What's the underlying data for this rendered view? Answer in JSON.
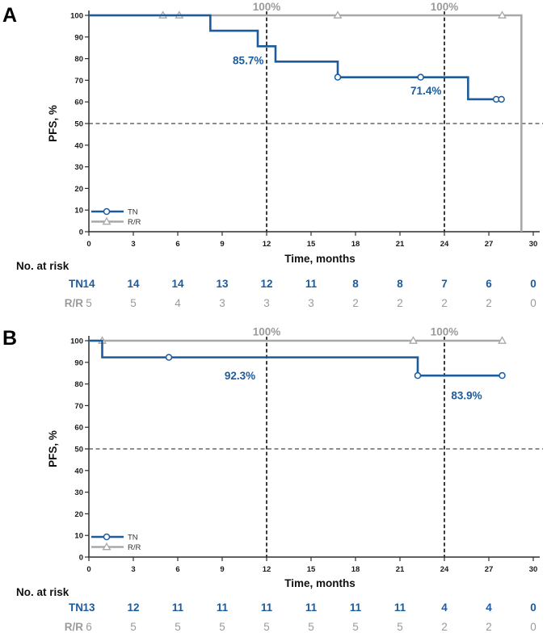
{
  "colors": {
    "blue": "#1c5b9c",
    "gray": "#a8a8a8",
    "gray_text": "#9a9a9a",
    "axis": "#2e2e2e",
    "dash": "#1a1a1a",
    "text": "#111111"
  },
  "chart_data": [
    {
      "panel_label": "A",
      "panel": "A",
      "type": "line",
      "subtype": "kaplan-meier-step",
      "xlabel": "Time, months",
      "ylabel": "PFS, %",
      "xlim": [
        0,
        30
      ],
      "ylim": [
        0,
        100
      ],
      "xticks": [
        0,
        3,
        6,
        9,
        12,
        15,
        18,
        21,
        24,
        27,
        30
      ],
      "yticks": [
        0,
        10,
        20,
        30,
        40,
        50,
        60,
        70,
        80,
        90,
        100
      ],
      "reference_lines": {
        "horizontal": [
          50
        ],
        "vertical": [
          12,
          24
        ]
      },
      "series": [
        {
          "name": "TN",
          "color": "blue",
          "marker": "circle",
          "steps": [
            [
              0,
              100
            ],
            [
              8.2,
              100
            ],
            [
              8.2,
              92.9
            ],
            [
              11.4,
              92.9
            ],
            [
              11.4,
              85.7
            ],
            [
              12.6,
              85.7
            ],
            [
              12.6,
              78.6
            ],
            [
              16.8,
              78.6
            ],
            [
              16.8,
              71.4
            ],
            [
              25.6,
              71.4
            ],
            [
              25.6,
              61.2
            ],
            [
              27.9,
              61.2
            ]
          ],
          "censor_marks": [
            [
              16.8,
              71.4
            ],
            [
              22.4,
              71.4
            ],
            [
              27.5,
              61.2
            ],
            [
              27.85,
              61.2
            ]
          ]
        },
        {
          "name": "R/R",
          "color": "gray",
          "marker": "triangle",
          "steps": [
            [
              0,
              100
            ],
            [
              29.2,
              100
            ],
            [
              29.2,
              0
            ]
          ],
          "censor_marks": [
            [
              5.0,
              100
            ],
            [
              6.1,
              100
            ],
            [
              16.8,
              100
            ],
            [
              27.9,
              100
            ]
          ]
        }
      ],
      "annotations": [
        {
          "text": "100%",
          "x": 12,
          "y": 102.3,
          "color": "gray_text",
          "anchor": "middle"
        },
        {
          "text": "100%",
          "x": 24,
          "y": 102.3,
          "color": "gray_text",
          "anchor": "middle"
        },
        {
          "text": "85.7%",
          "x": 11.8,
          "y": 77.5,
          "color": "blue",
          "anchor": "end"
        },
        {
          "text": "71.4%",
          "x": 23.8,
          "y": 63.5,
          "color": "blue",
          "anchor": "end"
        }
      ],
      "risk_table": {
        "title": "No. at risk",
        "months": [
          0,
          3,
          6,
          9,
          12,
          15,
          18,
          21,
          24,
          27,
          30
        ],
        "rows": [
          {
            "label": "TN",
            "color": "blue",
            "values": [
              14,
              14,
              14,
              13,
              12,
              11,
              8,
              8,
              7,
              6,
              0
            ]
          },
          {
            "label": "R/R",
            "color": "gray_text",
            "values": [
              5,
              5,
              4,
              3,
              3,
              3,
              2,
              2,
              2,
              2,
              0
            ]
          }
        ]
      }
    },
    {
      "panel_label": "B",
      "panel": "B",
      "type": "line",
      "subtype": "kaplan-meier-step",
      "xlabel": "Time, months",
      "ylabel": "PFS, %",
      "xlim": [
        0,
        30
      ],
      "ylim": [
        0,
        100
      ],
      "xticks": [
        0,
        3,
        6,
        9,
        12,
        15,
        18,
        21,
        24,
        27,
        30
      ],
      "yticks": [
        0,
        10,
        20,
        30,
        40,
        50,
        60,
        70,
        80,
        90,
        100
      ],
      "reference_lines": {
        "horizontal": [
          50
        ],
        "vertical": [
          12,
          24
        ]
      },
      "series": [
        {
          "name": "TN",
          "color": "blue",
          "marker": "circle",
          "steps": [
            [
              0,
              100
            ],
            [
              0.9,
              100
            ],
            [
              0.9,
              92.3
            ],
            [
              22.2,
              92.3
            ],
            [
              22.2,
              83.9
            ],
            [
              27.9,
              83.9
            ]
          ],
          "censor_marks": [
            [
              5.4,
              92.3
            ],
            [
              22.2,
              83.9
            ],
            [
              27.9,
              83.9
            ]
          ]
        },
        {
          "name": "R/R",
          "color": "gray",
          "marker": "triangle",
          "steps": [
            [
              0,
              100
            ],
            [
              27.9,
              100
            ]
          ],
          "censor_marks": [
            [
              0.9,
              100
            ],
            [
              21.9,
              100
            ],
            [
              27.9,
              100
            ]
          ]
        }
      ],
      "annotations": [
        {
          "text": "100%",
          "x": 12,
          "y": 102.5,
          "color": "gray_text",
          "anchor": "middle"
        },
        {
          "text": "100%",
          "x": 24,
          "y": 102.5,
          "color": "gray_text",
          "anchor": "middle"
        },
        {
          "text": "92.3%",
          "x": 10.2,
          "y": 82,
          "color": "blue",
          "anchor": "middle"
        },
        {
          "text": "83.9%",
          "x": 25.5,
          "y": 73,
          "color": "blue",
          "anchor": "middle"
        }
      ],
      "risk_table": {
        "title": "No. at risk",
        "months": [
          0,
          3,
          6,
          9,
          12,
          15,
          18,
          21,
          24,
          27,
          30
        ],
        "rows": [
          {
            "label": "TN",
            "color": "blue",
            "values": [
              13,
              12,
              11,
              11,
              11,
              11,
              11,
              11,
              4,
              4,
              0
            ]
          },
          {
            "label": "R/R",
            "color": "gray_text",
            "values": [
              6,
              5,
              5,
              5,
              5,
              5,
              5,
              5,
              2,
              2,
              0
            ]
          }
        ]
      }
    }
  ]
}
